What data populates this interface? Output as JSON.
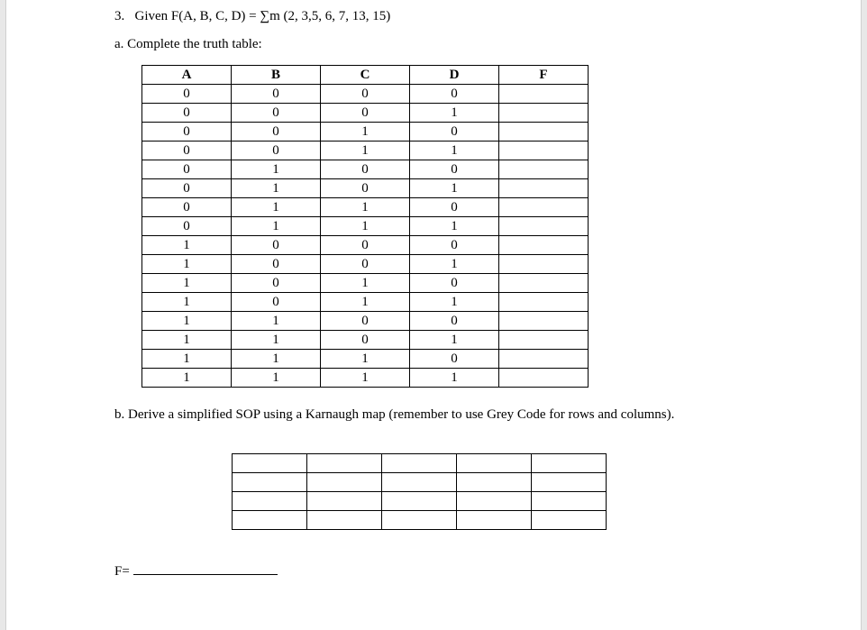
{
  "question": {
    "number": "3.",
    "text": "Given F(A, B, C, D) = ∑m (2, 3,5, 6, 7, 13, 15)"
  },
  "partA": {
    "label": "a. Complete the truth table:"
  },
  "truthTable": {
    "headers": [
      "A",
      "B",
      "C",
      "D",
      "F"
    ],
    "rows": [
      [
        "0",
        "0",
        "0",
        "0",
        ""
      ],
      [
        "0",
        "0",
        "0",
        "1",
        ""
      ],
      [
        "0",
        "0",
        "1",
        "0",
        ""
      ],
      [
        "0",
        "0",
        "1",
        "1",
        ""
      ],
      [
        "0",
        "1",
        "0",
        "0",
        ""
      ],
      [
        "0",
        "1",
        "0",
        "1",
        ""
      ],
      [
        "0",
        "1",
        "1",
        "0",
        ""
      ],
      [
        "0",
        "1",
        "1",
        "1",
        ""
      ],
      [
        "1",
        "0",
        "0",
        "0",
        ""
      ],
      [
        "1",
        "0",
        "0",
        "1",
        ""
      ],
      [
        "1",
        "0",
        "1",
        "0",
        ""
      ],
      [
        "1",
        "0",
        "1",
        "1",
        ""
      ],
      [
        "1",
        "1",
        "0",
        "0",
        ""
      ],
      [
        "1",
        "1",
        "0",
        "1",
        ""
      ],
      [
        "1",
        "1",
        "1",
        "0",
        ""
      ],
      [
        "1",
        "1",
        "1",
        "1",
        ""
      ]
    ]
  },
  "partB": {
    "label": "b. Derive a simplified SOP using a Karnaugh map (remember to use Grey Code for rows and columns)."
  },
  "kmap": {
    "rows": 4,
    "cols": 5
  },
  "answerLine": {
    "prefix": "F="
  }
}
